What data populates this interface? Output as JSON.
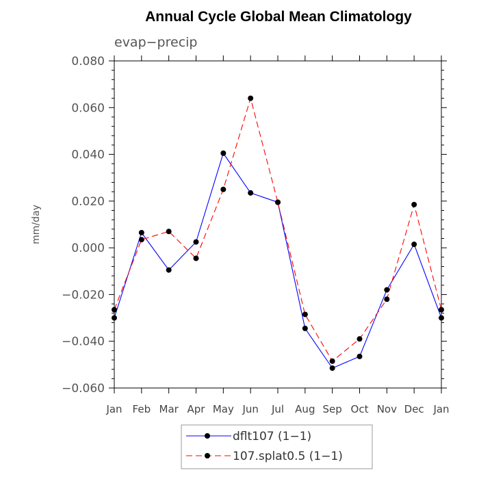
{
  "chart_data": {
    "type": "line",
    "title": "Annual Cycle Global Mean Climatology",
    "subtitle": "evap−precip",
    "ylabel": "mm/day",
    "xlabel": "",
    "ylim": [
      -0.06,
      0.08
    ],
    "yticks": [
      -0.06,
      -0.04,
      -0.02,
      0.0,
      0.02,
      0.04,
      0.06,
      0.08
    ],
    "ytick_labels": [
      "−0.060",
      "−0.040",
      "−0.020",
      "0.000",
      "0.020",
      "0.040",
      "0.060",
      "0.080"
    ],
    "categories": [
      "Jan",
      "Feb",
      "Mar",
      "Apr",
      "May",
      "Jun",
      "Jul",
      "Aug",
      "Sep",
      "Oct",
      "Nov",
      "Dec",
      "Jan"
    ],
    "series": [
      {
        "name": "dflt107 (1−1)",
        "color": "#0000ff",
        "dash": "solid",
        "values": [
          -0.03,
          0.0065,
          -0.0095,
          0.0025,
          0.0405,
          0.0235,
          0.0195,
          -0.0345,
          -0.0515,
          -0.0465,
          -0.018,
          0.0015,
          -0.03
        ]
      },
      {
        "name": "107.splat0.5 (1−1)",
        "color": "#ff0000",
        "dash": "dashed",
        "values": [
          -0.0265,
          0.0035,
          0.007,
          -0.0045,
          0.025,
          0.064,
          0.0195,
          -0.0285,
          -0.0485,
          -0.039,
          -0.022,
          0.0185,
          -0.0265
        ]
      }
    ],
    "legend_position": "bottom-center",
    "marker_color": "#000000"
  }
}
